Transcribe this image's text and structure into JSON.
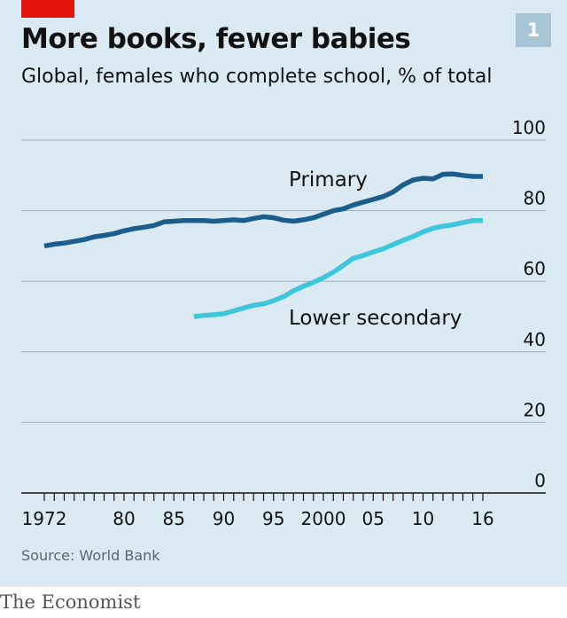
{
  "figure": {
    "title": "More books, fewer babies",
    "subtitle": "Global, females who complete school, % of total",
    "badge": "1",
    "source": "Source: World Bank",
    "brand": "The Economist"
  },
  "colors": {
    "background": "#dbe9f2",
    "primary_line": "#1b5e8d",
    "secondary_line": "#3ec6dd",
    "grid": "#9fb3c0",
    "red_tag": "#e3120b",
    "badge": "#a8c5d7"
  },
  "chart_data": {
    "type": "line",
    "title": "More books, fewer babies",
    "subtitle": "Global, females who complete school, % of total",
    "xlabel": "",
    "ylabel": "",
    "xlim": [
      1972,
      2016
    ],
    "ylim": [
      0,
      100
    ],
    "y_ticks": [
      0,
      20,
      40,
      60,
      80,
      100
    ],
    "y_tick_labels": [
      "0",
      "20",
      "40",
      "60",
      "80",
      "100"
    ],
    "y_axis_side": "right",
    "x_tick_labels": [
      {
        "x": 1972,
        "label": "1972"
      },
      {
        "x": 1980,
        "label": "80"
      },
      {
        "x": 1985,
        "label": "85"
      },
      {
        "x": 1990,
        "label": "90"
      },
      {
        "x": 1995,
        "label": "95"
      },
      {
        "x": 2000,
        "label": "2000"
      },
      {
        "x": 2005,
        "label": "05"
      },
      {
        "x": 2010,
        "label": "10"
      },
      {
        "x": 2016,
        "label": "16"
      }
    ],
    "grid": true,
    "legend": "inline labels",
    "series": [
      {
        "name": "Primary",
        "color": "#1b5e8d",
        "x": [
          1972,
          1973,
          1974,
          1975,
          1976,
          1977,
          1978,
          1979,
          1980,
          1981,
          1982,
          1983,
          1984,
          1985,
          1986,
          1987,
          1988,
          1989,
          1990,
          1991,
          1992,
          1993,
          1994,
          1995,
          1996,
          1997,
          1998,
          1999,
          2000,
          2001,
          2002,
          2003,
          2004,
          2005,
          2006,
          2007,
          2008,
          2009,
          2010,
          2011,
          2012,
          2013,
          2014,
          2015,
          2016
        ],
        "values": [
          70,
          70.5,
          70.8,
          71.3,
          71.8,
          72.6,
          73,
          73.5,
          74.3,
          74.9,
          75.3,
          75.8,
          76.8,
          77,
          77.2,
          77.2,
          77.2,
          77,
          77.2,
          77.4,
          77.2,
          77.8,
          78.3,
          78,
          77.3,
          77,
          77.4,
          78,
          79,
          80,
          80.5,
          81.6,
          82.4,
          83.2,
          84,
          85.3,
          87.3,
          88.7,
          89.2,
          89,
          90.3,
          90.4,
          90,
          89.7,
          89.7
        ]
      },
      {
        "name": "Lower secondary",
        "color": "#3ec6dd",
        "x": [
          1987,
          1988,
          1989,
          1990,
          1991,
          1992,
          1993,
          1994,
          1995,
          1996,
          1997,
          1998,
          1999,
          2000,
          2001,
          2002,
          2003,
          2004,
          2005,
          2006,
          2007,
          2008,
          2009,
          2010,
          2011,
          2012,
          2013,
          2014,
          2015,
          2016
        ],
        "values": [
          50,
          50.3,
          50.5,
          50.8,
          51.6,
          52.4,
          53.2,
          53.6,
          54.5,
          55.6,
          57.3,
          58.6,
          59.7,
          61,
          62.6,
          64.5,
          66.5,
          67.3,
          68.3,
          69.2,
          70.4,
          71.6,
          72.7,
          74,
          75,
          75.6,
          76,
          76.6,
          77.2,
          77.2
        ]
      }
    ],
    "annotations": [
      {
        "text": "Primary",
        "series": "Primary"
      },
      {
        "text": "Lower secondary",
        "series": "Lower secondary"
      }
    ]
  }
}
